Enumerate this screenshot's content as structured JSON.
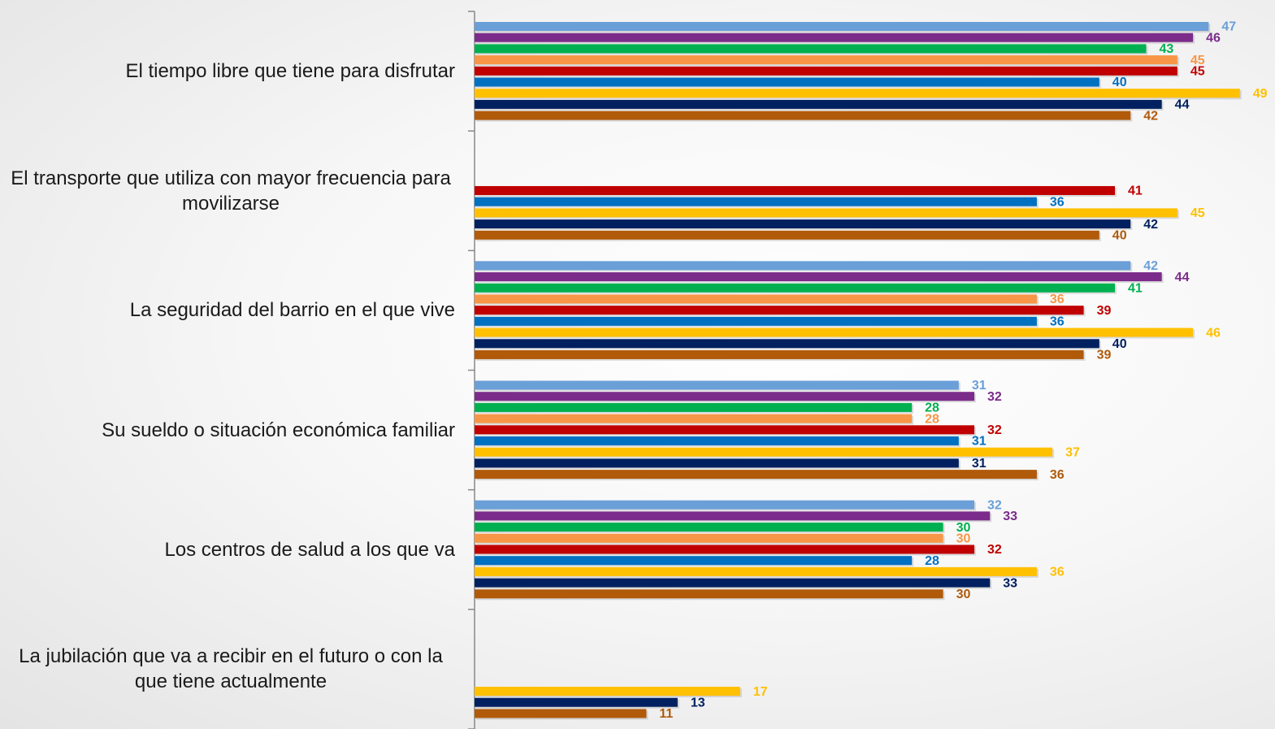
{
  "chart_data": {
    "type": "bar",
    "orientation": "horizontal",
    "categories": [
      "El tiempo libre que tiene para disfrutar",
      "El transporte que utiliza con mayor frecuencia para movilizarse",
      "La seguridad del barrio en el que vive",
      "Su sueldo o situación económica familiar",
      "Los centros de salud a los que va",
      "La jubilación que va a recibir en el futuro o con la que tiene actualmente"
    ],
    "series": [
      {
        "color": "#6a9fd8",
        "values": [
          47,
          null,
          42,
          31,
          32,
          null
        ]
      },
      {
        "color": "#7b2c8a",
        "values": [
          46,
          null,
          44,
          32,
          33,
          null
        ]
      },
      {
        "color": "#00b050",
        "values": [
          43,
          null,
          41,
          28,
          30,
          null
        ]
      },
      {
        "color": "#f79646",
        "values": [
          45,
          null,
          36,
          28,
          30,
          null
        ]
      },
      {
        "color": "#c00000",
        "values": [
          45,
          41,
          39,
          32,
          32,
          null
        ]
      },
      {
        "color": "#0070c0",
        "values": [
          40,
          36,
          36,
          31,
          28,
          null
        ]
      },
      {
        "color": "#ffc000",
        "values": [
          49,
          45,
          46,
          37,
          36,
          17
        ]
      },
      {
        "color": "#002060",
        "values": [
          44,
          42,
          40,
          31,
          33,
          13
        ]
      },
      {
        "color": "#b05a0a",
        "values": [
          42,
          40,
          39,
          36,
          30,
          11
        ]
      }
    ],
    "xlim": [
      0,
      50
    ]
  }
}
